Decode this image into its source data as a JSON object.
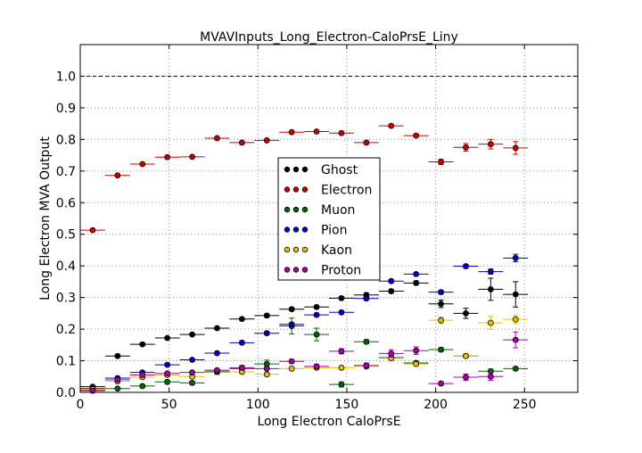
{
  "chart_data": {
    "type": "scatter",
    "title": "MVAVInputs_Long_Electron-CaloPrsE_Liny",
    "xlabel": "Long Electron CaloPrsE",
    "ylabel": "Long Electron MVA Output",
    "xlim": [
      0,
      280
    ],
    "ylim": [
      0,
      1.1
    ],
    "xticks": [
      "0",
      "50",
      "100",
      "150",
      "200",
      "250"
    ],
    "yticks": [
      "0.0",
      "0.1",
      "0.2",
      "0.3",
      "0.4",
      "0.5",
      "0.6",
      "0.7",
      "0.8",
      "0.9",
      "1.0"
    ],
    "grid": true,
    "legend_position": "center",
    "reference_line": 1.0,
    "bin_centers": [
      7,
      21,
      35,
      49,
      63,
      77,
      91,
      105,
      119,
      133,
      147,
      161,
      175,
      189,
      203,
      217,
      231,
      245
    ],
    "bin_halfwidth": 7,
    "series": [
      {
        "name": "Ghost",
        "color": "#000000",
        "x": [
          7,
          21,
          35,
          49,
          63,
          77,
          91,
          105,
          119,
          133,
          147,
          161,
          175,
          189,
          203,
          217,
          231,
          245
        ],
        "y": [
          0.018,
          0.115,
          0.152,
          0.172,
          0.183,
          0.203,
          0.232,
          0.243,
          0.263,
          0.27,
          0.298,
          0.308,
          0.32,
          0.346,
          0.28,
          0.25,
          0.326,
          0.31
        ],
        "err": [
          0.003,
          0.004,
          0.004,
          0.004,
          0.004,
          0.004,
          0.004,
          0.005,
          0.005,
          0.005,
          0.005,
          0.006,
          0.006,
          0.006,
          0.012,
          0.016,
          0.035,
          0.04
        ]
      },
      {
        "name": "Electron",
        "color": "#cc0000",
        "x": [
          7,
          21,
          35,
          49,
          63,
          77,
          91,
          105,
          119,
          133,
          147,
          161,
          175,
          189,
          203,
          217,
          231,
          245
        ],
        "y": [
          0.513,
          0.686,
          0.722,
          0.744,
          0.745,
          0.804,
          0.79,
          0.797,
          0.823,
          0.825,
          0.82,
          0.79,
          0.843,
          0.812,
          0.729,
          0.775,
          0.785,
          0.773
        ],
        "err": [
          0.003,
          0.003,
          0.003,
          0.003,
          0.003,
          0.003,
          0.003,
          0.003,
          0.003,
          0.003,
          0.003,
          0.004,
          0.004,
          0.005,
          0.008,
          0.012,
          0.015,
          0.02
        ]
      },
      {
        "name": "Muon",
        "color": "#006600",
        "x": [
          7,
          21,
          35,
          49,
          63,
          77,
          91,
          105,
          119,
          133,
          147,
          161,
          175,
          189,
          203,
          217,
          231,
          245
        ],
        "y": [
          0.008,
          0.012,
          0.02,
          0.033,
          0.03,
          0.065,
          0.075,
          0.09,
          0.21,
          0.183,
          0.025,
          0.16,
          0.11,
          0.093,
          0.135,
          0.115,
          0.067,
          0.075
        ],
        "err": [
          0.002,
          0.003,
          0.004,
          0.005,
          0.006,
          0.008,
          0.01,
          0.012,
          0.025,
          0.02,
          0.008,
          0.006,
          0.008,
          0.006,
          0.006,
          0.006,
          0.006,
          0.005
        ]
      },
      {
        "name": "Pion",
        "color": "#0000cc",
        "x": [
          7,
          21,
          35,
          49,
          63,
          77,
          91,
          105,
          119,
          133,
          147,
          161,
          175,
          189,
          203,
          217,
          231,
          245
        ],
        "y": [
          0.012,
          0.045,
          0.063,
          0.087,
          0.103,
          0.124,
          0.157,
          0.187,
          0.215,
          0.245,
          0.253,
          0.297,
          0.352,
          0.374,
          0.317,
          0.399,
          0.382,
          0.425
        ],
        "err": [
          0.003,
          0.003,
          0.004,
          0.004,
          0.004,
          0.004,
          0.004,
          0.005,
          0.005,
          0.005,
          0.005,
          0.005,
          0.005,
          0.005,
          0.006,
          0.006,
          0.008,
          0.012
        ]
      },
      {
        "name": "Kaon",
        "color": "#e6c000",
        "x": [
          7,
          21,
          35,
          49,
          63,
          77,
          91,
          105,
          119,
          133,
          147,
          161,
          175,
          189,
          203,
          217,
          231,
          245
        ],
        "y": [
          0.01,
          0.035,
          0.048,
          0.055,
          0.05,
          0.068,
          0.065,
          0.057,
          0.075,
          0.078,
          0.078,
          0.082,
          0.108,
          0.09,
          0.228,
          0.115,
          0.22,
          0.231
        ],
        "err": [
          0.003,
          0.003,
          0.003,
          0.003,
          0.003,
          0.003,
          0.003,
          0.004,
          0.004,
          0.004,
          0.004,
          0.005,
          0.005,
          0.005,
          0.01,
          0.006,
          0.02,
          0.012
        ]
      },
      {
        "name": "Proton",
        "color": "#aa00aa",
        "x": [
          7,
          21,
          35,
          49,
          63,
          77,
          91,
          105,
          119,
          133,
          147,
          161,
          175,
          189,
          203,
          217,
          231,
          245
        ],
        "y": [
          0.005,
          0.04,
          0.055,
          0.06,
          0.063,
          0.07,
          0.078,
          0.075,
          0.098,
          0.082,
          0.13,
          0.085,
          0.123,
          0.132,
          0.028,
          0.048,
          0.05,
          0.166
        ],
        "err": [
          0.002,
          0.003,
          0.004,
          0.004,
          0.004,
          0.004,
          0.005,
          0.005,
          0.006,
          0.006,
          0.008,
          0.008,
          0.012,
          0.012,
          0.005,
          0.01,
          0.012,
          0.025
        ]
      }
    ]
  }
}
